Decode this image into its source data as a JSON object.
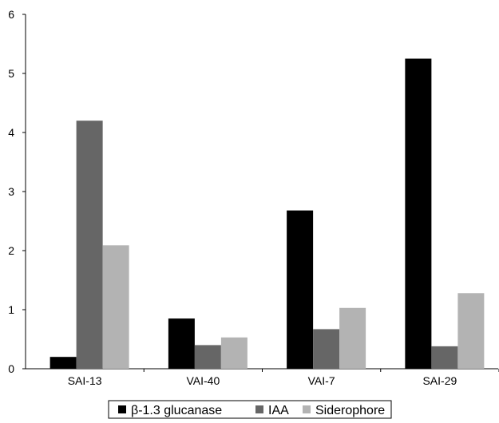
{
  "chart_data": {
    "type": "bar",
    "title": "",
    "xlabel": "",
    "ylabel": "",
    "categories": [
      "SAI-13",
      "VAI-40",
      "VAI-7",
      "SAI-29"
    ],
    "ylim": [
      0,
      6
    ],
    "yticks": [
      0,
      1,
      2,
      3,
      4,
      5,
      6
    ],
    "grid": false,
    "legend_placement": "bottom-center",
    "series": [
      {
        "name": "β-1.3 glucanase",
        "color": "#000000",
        "values": [
          0.2,
          0.85,
          2.68,
          5.25
        ]
      },
      {
        "name": "IAA",
        "color": "#666666",
        "values": [
          4.2,
          0.4,
          0.67,
          0.38
        ]
      },
      {
        "name": "Siderophore",
        "color": "#b3b3b3",
        "values": [
          2.09,
          0.53,
          1.03,
          1.28
        ]
      }
    ]
  }
}
